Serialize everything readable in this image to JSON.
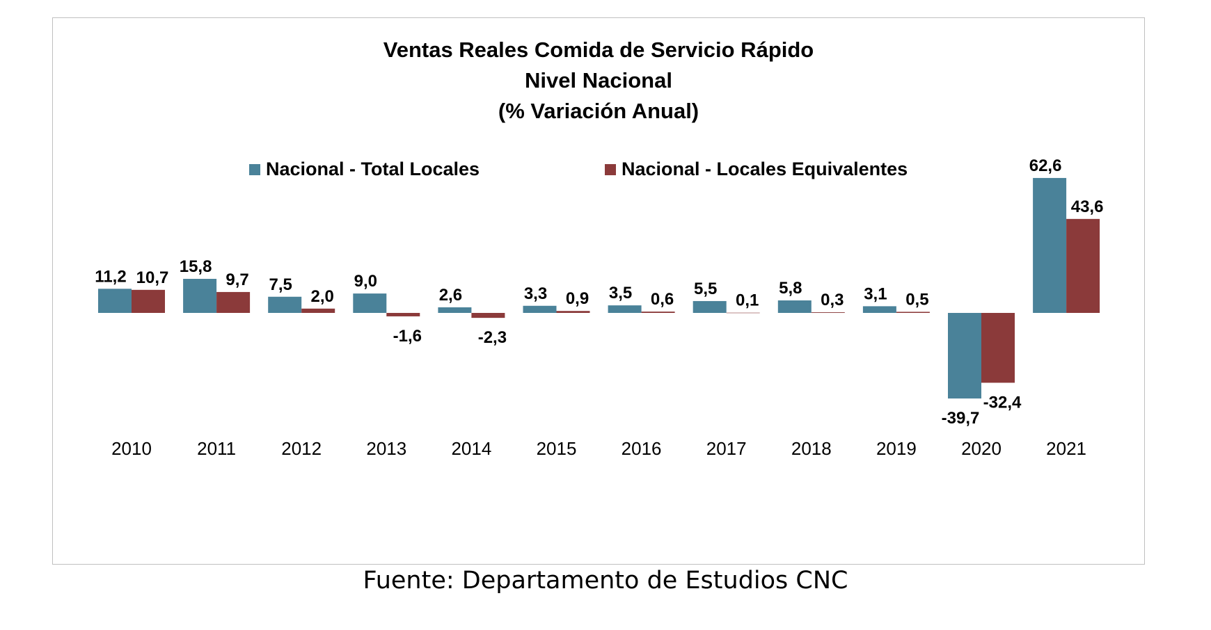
{
  "title_lines": [
    "Ventas Reales Comida de Servicio Rápido",
    "Nivel Nacional",
    "(% Variación Anual)"
  ],
  "source": "Fuente: Departamento de Estudios CNC",
  "colors": {
    "series1": "#4A8299",
    "series2": "#8B3A3A"
  },
  "chart_data": {
    "type": "bar",
    "title": "Ventas Reales Comida de Servicio Rápido Nivel Nacional (% Variación Anual)",
    "categories": [
      "2010",
      "2011",
      "2012",
      "2013",
      "2014",
      "2015",
      "2016",
      "2017",
      "2018",
      "2019",
      "2020",
      "2021"
    ],
    "series": [
      {
        "name": "Nacional - Total Locales",
        "values": [
          11.2,
          15.8,
          7.5,
          9.0,
          2.6,
          3.3,
          3.5,
          5.5,
          5.8,
          3.1,
          -39.7,
          62.6
        ],
        "labels": [
          "11,2",
          "15,8",
          "7,5",
          "9,0",
          "2,6",
          "3,3",
          "3,5",
          "5,5",
          "5,8",
          "3,1",
          "-39,7",
          "62,6"
        ]
      },
      {
        "name": "Nacional - Locales Equivalentes",
        "values": [
          10.7,
          9.7,
          2.0,
          -1.6,
          -2.3,
          0.9,
          0.6,
          0.1,
          0.3,
          0.5,
          -32.4,
          43.6
        ],
        "labels": [
          "10,7",
          "9,7",
          "2,0",
          "-1,6",
          "-2,3",
          "0,9",
          "0,6",
          "0,1",
          "0,3",
          "0,5",
          "-32,4",
          "43,6"
        ]
      }
    ],
    "xlabel": "",
    "ylabel": "",
    "grid": false,
    "legend": "top-center"
  }
}
